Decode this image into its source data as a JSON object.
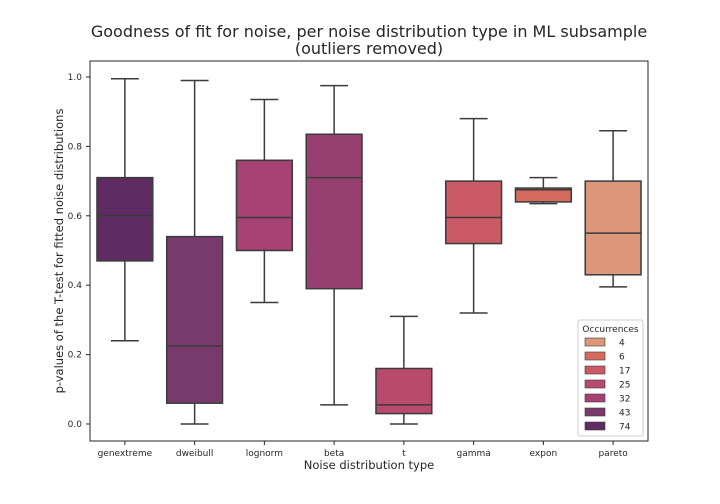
{
  "chart_data": {
    "type": "box",
    "title": "Goodness of fit for noise, per noise distribution type in ML subsample",
    "subtitle": "(outliers removed)",
    "xlabel": "Noise distribution type",
    "ylabel": "p-values of the T-test for fitted noise distributions",
    "ylim": [
      -0.04,
      1.05
    ],
    "yticks": [
      "0.0",
      "0.2",
      "0.4",
      "0.6",
      "0.8",
      "1.0"
    ],
    "categories": [
      "genextreme",
      "dweibull",
      "lognorm",
      "beta",
      "t",
      "gamma",
      "expon",
      "pareto"
    ],
    "boxes": [
      {
        "category": "genextreme",
        "min": 0.24,
        "q1": 0.47,
        "median": 0.6,
        "q3": 0.71,
        "max": 0.995,
        "color": "#5e2b63"
      },
      {
        "category": "dweibull",
        "min": 0.0,
        "q1": 0.06,
        "median": 0.225,
        "q3": 0.54,
        "max": 0.99,
        "color": "#783a6c"
      },
      {
        "category": "lognorm",
        "min": 0.35,
        "q1": 0.5,
        "median": 0.595,
        "q3": 0.76,
        "max": 0.935,
        "color": "#a64173"
      },
      {
        "category": "beta",
        "min": 0.055,
        "q1": 0.39,
        "median": 0.71,
        "q3": 0.835,
        "max": 0.975,
        "color": "#974070"
      },
      {
        "category": "t",
        "min": 0.0,
        "q1": 0.03,
        "median": 0.055,
        "q3": 0.16,
        "max": 0.31,
        "color": "#b84a6e"
      },
      {
        "category": "gamma",
        "min": 0.32,
        "q1": 0.52,
        "median": 0.595,
        "q3": 0.7,
        "max": 0.88,
        "color": "#cb5a66"
      },
      {
        "category": "expon",
        "min": 0.635,
        "q1": 0.64,
        "median": 0.675,
        "q3": 0.68,
        "max": 0.71,
        "color": "#d66a5e"
      },
      {
        "category": "pareto",
        "min": 0.395,
        "q1": 0.43,
        "median": 0.55,
        "q3": 0.7,
        "max": 0.845,
        "color": "#dc977a"
      }
    ],
    "legend": {
      "title": "Occurrences",
      "position": "lower-right",
      "entries": [
        {
          "label": "4",
          "color": "#dc977a"
        },
        {
          "label": "6",
          "color": "#d66a5e"
        },
        {
          "label": "17",
          "color": "#cb5a66"
        },
        {
          "label": "25",
          "color": "#b84a6e"
        },
        {
          "label": "32",
          "color": "#a64173"
        },
        {
          "label": "43",
          "color": "#783a6c"
        },
        {
          "label": "74",
          "color": "#5e2b63"
        }
      ]
    },
    "grid": false
  }
}
